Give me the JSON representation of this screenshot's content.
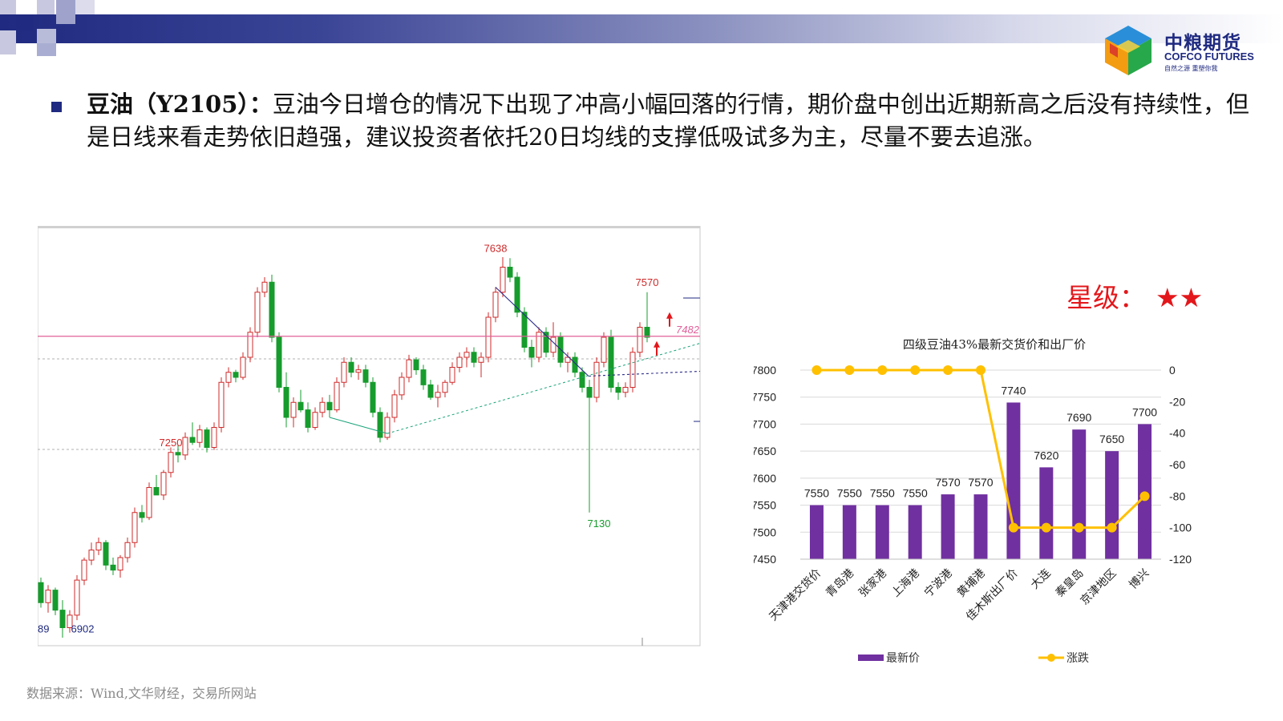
{
  "commentary": {
    "title": "豆油（Y2105）：",
    "body": "豆油今日增仓的情况下出现了冲高小幅回落的行情，期价盘中创出近期新高之后没有持续性，但是日线来看走势依旧趋强，建议投资者依托20日均线的支撑低吸试多为主，尽量不要去追涨。"
  },
  "logo": {
    "name_cn": "中粮期货",
    "name_en": "COFCO FUTURES",
    "tagline": "自然之源 重塑你我"
  },
  "rating": {
    "label": "星级：",
    "stars": "★★"
  },
  "source": "数据来源：Wind,文华财经，交易所网站",
  "colors": {
    "brand_navy": "#1f2a80",
    "up_red": "#cf2a2a",
    "down_green": "#169c2c",
    "bar_purple": "#7030a0",
    "line_yellow": "#ffc000",
    "level_line": "#e0609a",
    "star_red": "#e3171b"
  },
  "kline": {
    "level_label": "7482",
    "annotations": [
      {
        "text": "7638",
        "price": 7638
      },
      {
        "text": "7570",
        "price": 7570
      },
      {
        "text": "7250",
        "price": 7250
      },
      {
        "text": "7130",
        "price": 7130
      },
      {
        "text": "6902",
        "price": 6902
      }
    ],
    "axis_fragment": "89",
    "chart_data": {
      "type": "candlestick",
      "level_price": 7482,
      "price_range": [
        6880,
        7680
      ],
      "candles": [
        {
          "o": 6990,
          "h": 7000,
          "l": 6940,
          "c": 6950
        },
        {
          "o": 6950,
          "h": 6985,
          "l": 6930,
          "c": 6975
        },
        {
          "o": 6975,
          "h": 6980,
          "l": 6925,
          "c": 6935
        },
        {
          "o": 6935,
          "h": 6955,
          "l": 6880,
          "c": 6900
        },
        {
          "o": 6900,
          "h": 6935,
          "l": 6890,
          "c": 6925
        },
        {
          "o": 6925,
          "h": 7005,
          "l": 6915,
          "c": 6995
        },
        {
          "o": 6995,
          "h": 7040,
          "l": 6985,
          "c": 7035
        },
        {
          "o": 7035,
          "h": 7070,
          "l": 7025,
          "c": 7055
        },
        {
          "o": 7055,
          "h": 7080,
          "l": 7045,
          "c": 7070
        },
        {
          "o": 7070,
          "h": 7075,
          "l": 7015,
          "c": 7025
        },
        {
          "o": 7025,
          "h": 7040,
          "l": 7005,
          "c": 7015
        },
        {
          "o": 7015,
          "h": 7045,
          "l": 7000,
          "c": 7040
        },
        {
          "o": 7040,
          "h": 7080,
          "l": 7030,
          "c": 7070
        },
        {
          "o": 7070,
          "h": 7140,
          "l": 7060,
          "c": 7130
        },
        {
          "o": 7130,
          "h": 7145,
          "l": 7110,
          "c": 7120
        },
        {
          "o": 7120,
          "h": 7190,
          "l": 7115,
          "c": 7180
        },
        {
          "o": 7180,
          "h": 7205,
          "l": 7170,
          "c": 7165
        },
        {
          "o": 7165,
          "h": 7215,
          "l": 7155,
          "c": 7210
        },
        {
          "o": 7210,
          "h": 7260,
          "l": 7200,
          "c": 7250
        },
        {
          "o": 7250,
          "h": 7265,
          "l": 7230,
          "c": 7245
        },
        {
          "o": 7245,
          "h": 7290,
          "l": 7235,
          "c": 7280
        },
        {
          "o": 7280,
          "h": 7310,
          "l": 7265,
          "c": 7270
        },
        {
          "o": 7270,
          "h": 7305,
          "l": 7260,
          "c": 7295
        },
        {
          "o": 7295,
          "h": 7300,
          "l": 7250,
          "c": 7260
        },
        {
          "o": 7260,
          "h": 7310,
          "l": 7255,
          "c": 7300
        },
        {
          "o": 7300,
          "h": 7400,
          "l": 7290,
          "c": 7390
        },
        {
          "o": 7390,
          "h": 7420,
          "l": 7380,
          "c": 7410
        },
        {
          "o": 7410,
          "h": 7415,
          "l": 7390,
          "c": 7400
        },
        {
          "o": 7400,
          "h": 7450,
          "l": 7395,
          "c": 7440
        },
        {
          "o": 7440,
          "h": 7500,
          "l": 7430,
          "c": 7490
        },
        {
          "o": 7490,
          "h": 7580,
          "l": 7480,
          "c": 7570
        },
        {
          "o": 7570,
          "h": 7600,
          "l": 7560,
          "c": 7590
        },
        {
          "o": 7590,
          "h": 7605,
          "l": 7470,
          "c": 7480
        },
        {
          "o": 7480,
          "h": 7490,
          "l": 7370,
          "c": 7380
        },
        {
          "o": 7380,
          "h": 7410,
          "l": 7300,
          "c": 7320
        },
        {
          "o": 7320,
          "h": 7360,
          "l": 7300,
          "c": 7350
        },
        {
          "o": 7350,
          "h": 7375,
          "l": 7330,
          "c": 7335
        },
        {
          "o": 7335,
          "h": 7350,
          "l": 7290,
          "c": 7300
        },
        {
          "o": 7300,
          "h": 7340,
          "l": 7295,
          "c": 7330
        },
        {
          "o": 7330,
          "h": 7360,
          "l": 7320,
          "c": 7350
        },
        {
          "o": 7350,
          "h": 7365,
          "l": 7320,
          "c": 7335
        },
        {
          "o": 7335,
          "h": 7400,
          "l": 7330,
          "c": 7390
        },
        {
          "o": 7390,
          "h": 7440,
          "l": 7380,
          "c": 7430
        },
        {
          "o": 7430,
          "h": 7440,
          "l": 7400,
          "c": 7410
        },
        {
          "o": 7410,
          "h": 7425,
          "l": 7395,
          "c": 7415
        },
        {
          "o": 7415,
          "h": 7425,
          "l": 7380,
          "c": 7390
        },
        {
          "o": 7390,
          "h": 7400,
          "l": 7320,
          "c": 7330
        },
        {
          "o": 7330,
          "h": 7340,
          "l": 7270,
          "c": 7280
        },
        {
          "o": 7280,
          "h": 7330,
          "l": 7275,
          "c": 7320
        },
        {
          "o": 7320,
          "h": 7375,
          "l": 7310,
          "c": 7365
        },
        {
          "o": 7365,
          "h": 7410,
          "l": 7355,
          "c": 7400
        },
        {
          "o": 7400,
          "h": 7445,
          "l": 7390,
          "c": 7435
        },
        {
          "o": 7435,
          "h": 7440,
          "l": 7405,
          "c": 7415
        },
        {
          "o": 7415,
          "h": 7425,
          "l": 7375,
          "c": 7385
        },
        {
          "o": 7385,
          "h": 7395,
          "l": 7355,
          "c": 7360
        },
        {
          "o": 7360,
          "h": 7385,
          "l": 7340,
          "c": 7370
        },
        {
          "o": 7370,
          "h": 7395,
          "l": 7360,
          "c": 7390
        },
        {
          "o": 7390,
          "h": 7430,
          "l": 7385,
          "c": 7420
        },
        {
          "o": 7420,
          "h": 7450,
          "l": 7410,
          "c": 7440
        },
        {
          "o": 7440,
          "h": 7460,
          "l": 7420,
          "c": 7450
        },
        {
          "o": 7450,
          "h": 7460,
          "l": 7420,
          "c": 7430
        },
        {
          "o": 7430,
          "h": 7450,
          "l": 7400,
          "c": 7440
        },
        {
          "o": 7440,
          "h": 7530,
          "l": 7430,
          "c": 7520
        },
        {
          "o": 7520,
          "h": 7580,
          "l": 7510,
          "c": 7570
        },
        {
          "o": 7570,
          "h": 7640,
          "l": 7560,
          "c": 7620
        },
        {
          "o": 7620,
          "h": 7638,
          "l": 7590,
          "c": 7600
        },
        {
          "o": 7600,
          "h": 7610,
          "l": 7520,
          "c": 7530
        },
        {
          "o": 7530,
          "h": 7540,
          "l": 7450,
          "c": 7460
        },
        {
          "o": 7460,
          "h": 7475,
          "l": 7420,
          "c": 7440
        },
        {
          "o": 7440,
          "h": 7500,
          "l": 7430,
          "c": 7490
        },
        {
          "o": 7490,
          "h": 7500,
          "l": 7440,
          "c": 7450
        },
        {
          "o": 7450,
          "h": 7510,
          "l": 7440,
          "c": 7480
        },
        {
          "o": 7480,
          "h": 7490,
          "l": 7420,
          "c": 7430
        },
        {
          "o": 7430,
          "h": 7450,
          "l": 7410,
          "c": 7440
        },
        {
          "o": 7440,
          "h": 7450,
          "l": 7400,
          "c": 7410
        },
        {
          "o": 7410,
          "h": 7420,
          "l": 7370,
          "c": 7380
        },
        {
          "o": 7380,
          "h": 7395,
          "l": 7130,
          "c": 7360
        },
        {
          "o": 7360,
          "h": 7440,
          "l": 7350,
          "c": 7430
        },
        {
          "o": 7430,
          "h": 7490,
          "l": 7420,
          "c": 7480
        },
        {
          "o": 7480,
          "h": 7495,
          "l": 7370,
          "c": 7380
        },
        {
          "o": 7380,
          "h": 7390,
          "l": 7355,
          "c": 7370
        },
        {
          "o": 7370,
          "h": 7390,
          "l": 7360,
          "c": 7380
        },
        {
          "o": 7380,
          "h": 7460,
          "l": 7370,
          "c": 7450
        },
        {
          "o": 7450,
          "h": 7510,
          "l": 7440,
          "c": 7500
        },
        {
          "o": 7500,
          "h": 7570,
          "l": 7470,
          "c": 7480
        }
      ]
    }
  },
  "combo": {
    "title": "四级豆油43%最新交货价和出厂价",
    "legend_bar": "最新价",
    "legend_line": "涨跌",
    "chart_data": {
      "type": "bar+line",
      "title": "四级豆油43%最新交货价和出厂价",
      "categories": [
        "天津港交货价",
        "青岛港",
        "张家港",
        "上海港",
        "宁波港",
        "黄埔港",
        "佳木斯出厂价",
        "大连",
        "秦皇岛",
        "京津地区",
        "博兴"
      ],
      "series": [
        {
          "name": "最新价",
          "type": "bar",
          "axis": "left",
          "values": [
            7550,
            7550,
            7550,
            7550,
            7570,
            7570,
            7740,
            7620,
            7690,
            7650,
            7700
          ]
        },
        {
          "name": "涨跌",
          "type": "line",
          "axis": "right",
          "values": [
            0,
            0,
            0,
            0,
            0,
            0,
            -100,
            -100,
            -100,
            -100,
            -80
          ]
        }
      ],
      "ylim_left": [
        7450,
        7800
      ],
      "yticks_left": [
        7450,
        7500,
        7550,
        7600,
        7650,
        7700,
        7750,
        7800
      ],
      "ylim_right": [
        -120,
        0
      ],
      "yticks_right": [
        0,
        -20,
        -40,
        -60,
        -80,
        -100,
        -120
      ],
      "grid": true,
      "legend": "bottom"
    }
  }
}
